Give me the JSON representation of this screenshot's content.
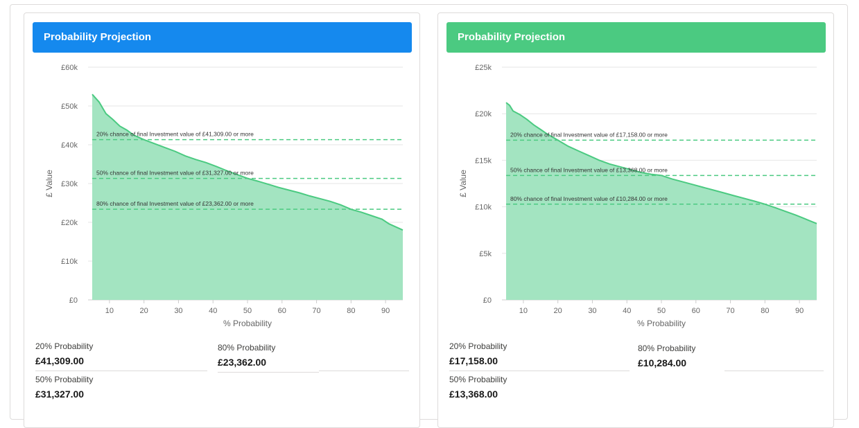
{
  "panels": [
    {
      "id": "left",
      "header_title": "Probability Projection",
      "header_color": "#1589ee",
      "chart_data": {
        "type": "area",
        "xlabel": "% Probability",
        "ylabel": "£ Value",
        "x_ticks": [
          10,
          20,
          30,
          40,
          50,
          60,
          70,
          80,
          90
        ],
        "y_ticks": [
          "£0",
          "£10k",
          "£20k",
          "£30k",
          "£40k",
          "£50k",
          "£60k"
        ],
        "xlim": [
          5,
          95
        ],
        "ylim": [
          0,
          60000
        ],
        "grid": true,
        "fill_color": "#a3e4c1",
        "line_color": "#4bca81",
        "x": [
          5,
          7,
          9,
          11,
          13,
          15,
          17,
          20,
          23,
          26,
          29,
          32,
          35,
          38,
          41,
          44,
          47,
          50,
          53,
          56,
          59,
          62,
          65,
          68,
          71,
          74,
          77,
          80,
          83,
          86,
          89,
          91,
          93,
          95
        ],
        "values": [
          53000,
          51000,
          48000,
          46500,
          44800,
          43800,
          42500,
          41309,
          40300,
          39300,
          38300,
          37100,
          36200,
          35400,
          34400,
          33300,
          32300,
          31327,
          30600,
          29800,
          29000,
          28300,
          27600,
          26800,
          26100,
          25400,
          24500,
          23362,
          22600,
          21700,
          20800,
          19600,
          18800,
          18000
        ],
        "reference_lines": [
          {
            "value": 41309,
            "label": "20% chance of final Investment value of £41,309.00 or more"
          },
          {
            "value": 31327,
            "label": "50% chance of final Investment value of £31,327.00 or more"
          },
          {
            "value": 23362,
            "label": "80% chance of final Investment value of £23,362.00 or more"
          }
        ]
      },
      "stats": [
        {
          "label": "20% Probability",
          "value": "£41,309.00"
        },
        {
          "label": "80% Probability",
          "value": "£23,362.00"
        },
        {
          "label": "50% Probability",
          "value": "£31,327.00"
        }
      ]
    },
    {
      "id": "right",
      "header_title": "Probability Projection",
      "header_color": "#4bca81",
      "chart_data": {
        "type": "area",
        "xlabel": "% Probability",
        "ylabel": "£ Value",
        "x_ticks": [
          10,
          20,
          30,
          40,
          50,
          60,
          70,
          80,
          90
        ],
        "y_ticks": [
          "£0",
          "£5k",
          "£10k",
          "£15k",
          "£20k",
          "£25k"
        ],
        "xlim": [
          5,
          95
        ],
        "ylim": [
          0,
          25000
        ],
        "grid": true,
        "fill_color": "#a3e4c1",
        "line_color": "#4bca81",
        "x": [
          5,
          6,
          7,
          9,
          11,
          13,
          15,
          17,
          20,
          23,
          26,
          29,
          32,
          35,
          38,
          41,
          44,
          47,
          50,
          53,
          56,
          59,
          62,
          65,
          68,
          71,
          74,
          77,
          80,
          83,
          86,
          89,
          91,
          93,
          95
        ],
        "values": [
          21200,
          20900,
          20300,
          19900,
          19400,
          18800,
          18300,
          17800,
          17158,
          16500,
          16000,
          15500,
          15000,
          14600,
          14300,
          14000,
          13700,
          13500,
          13368,
          13000,
          12700,
          12400,
          12100,
          11800,
          11500,
          11200,
          10900,
          10600,
          10284,
          9900,
          9500,
          9100,
          8800,
          8500,
          8200
        ],
        "reference_lines": [
          {
            "value": 17158,
            "label": "20% chance of final Investment value of £17,158.00 or more"
          },
          {
            "value": 13368,
            "label": "50% chance of final Investment value of £13,368.00 or more"
          },
          {
            "value": 10284,
            "label": "80% chance of final Investment value of £10,284.00 or more"
          }
        ]
      },
      "stats": [
        {
          "label": "20% Probability",
          "value": "£17,158.00"
        },
        {
          "label": "80% Probability",
          "value": "£10,284.00"
        },
        {
          "label": "50% Probability",
          "value": "£13,368.00"
        }
      ]
    }
  ]
}
